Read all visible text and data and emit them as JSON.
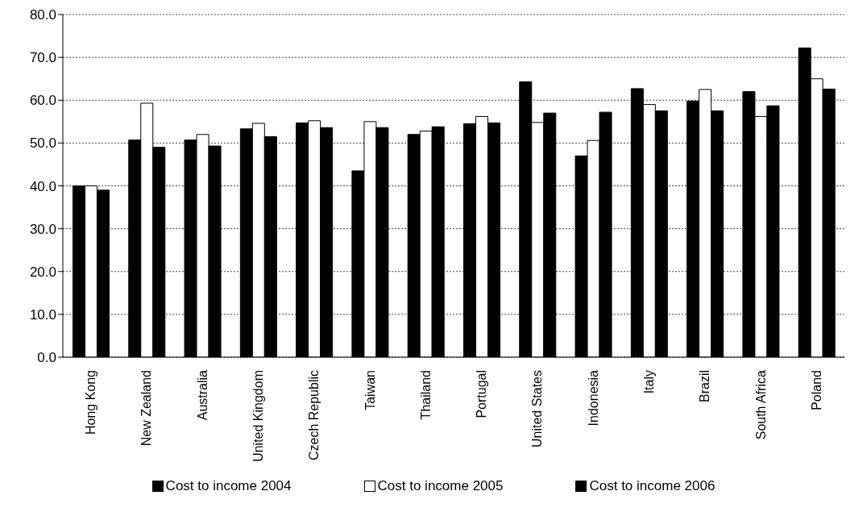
{
  "chart_data": {
    "type": "bar",
    "categories": [
      "Hong Kong",
      "New Zealand",
      "Australia",
      "United Kingdom",
      "Czech Republic",
      "Taiwan",
      "Thailand",
      "Portugal",
      "United States",
      "Indonesia",
      "Italy",
      "Brazil",
      "South Africa",
      "Poland"
    ],
    "series": [
      {
        "name": "Cost to income 2004",
        "color": "#000000",
        "values": [
          40,
          50.7,
          50.7,
          53.3,
          54.7,
          43.5,
          52,
          54.5,
          64.3,
          47,
          62.7,
          59.8,
          62,
          72.2
        ]
      },
      {
        "name": "Cost to income 2005",
        "color": "#ffffff",
        "values": [
          40,
          59.3,
          52,
          54.6,
          55.2,
          55,
          52.8,
          56.2,
          54.8,
          50.6,
          59,
          62.5,
          56.2,
          65
        ]
      },
      {
        "name": "Cost to income 2006",
        "color": "#000000",
        "values": [
          39,
          49,
          49.3,
          51.5,
          53.6,
          53.6,
          53.8,
          54.7,
          57,
          57.2,
          57.5,
          57.5,
          58.7,
          62.6
        ]
      }
    ],
    "ylim": [
      0,
      80
    ],
    "yticks": [
      {
        "value": 0,
        "label": "0.0"
      },
      {
        "value": 10,
        "label": "10.0"
      },
      {
        "value": 20,
        "label": "20.0"
      },
      {
        "value": 30,
        "label": "30.0"
      },
      {
        "value": 40,
        "label": "40.0"
      },
      {
        "value": 50,
        "label": "50.0"
      },
      {
        "value": 60,
        "label": "60.0"
      },
      {
        "value": 70,
        "label": "70.0"
      },
      {
        "value": 80,
        "label": "80.0"
      }
    ],
    "grid": "y",
    "legend": "bottom"
  }
}
